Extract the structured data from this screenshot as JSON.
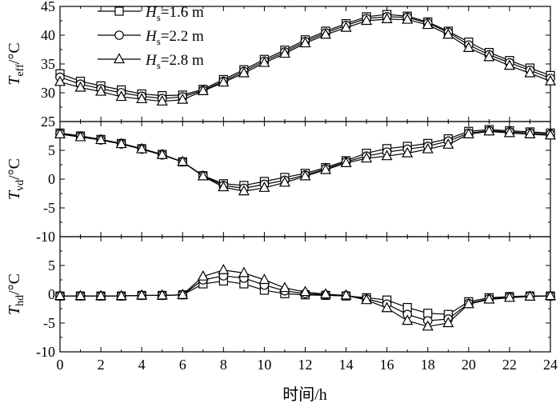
{
  "chart_data": [
    {
      "type": "line",
      "panel": "top",
      "ylabel_main": "T",
      "ylabel_sub": "eff",
      "ylabel_unit": "/°C",
      "ylim": [
        25,
        45
      ],
      "yticks": [
        25,
        30,
        35,
        40,
        45
      ],
      "xlim": [
        0,
        24
      ],
      "grid": false,
      "legend_position": "top-left",
      "x": [
        0,
        1,
        2,
        3,
        4,
        5,
        6,
        7,
        8,
        9,
        10,
        11,
        12,
        13,
        14,
        15,
        16,
        17,
        18,
        19,
        20,
        21,
        22,
        23,
        24
      ],
      "series": [
        {
          "name_main": "H",
          "name_sub": "s",
          "name_rest": "=1.6 m",
          "marker": "square",
          "values": [
            33.3,
            32.0,
            31.2,
            30.5,
            29.8,
            29.5,
            29.6,
            30.6,
            32.3,
            34.0,
            35.8,
            37.4,
            39.2,
            40.7,
            42.0,
            43.2,
            43.6,
            43.3,
            42.3,
            40.7,
            38.8,
            37.0,
            35.6,
            34.3,
            33.0
          ]
        },
        {
          "name_main": "H",
          "name_sub": "s",
          "name_rest": "=2.2 m",
          "marker": "circle",
          "values": [
            32.7,
            31.5,
            30.7,
            30.0,
            29.4,
            29.0,
            29.3,
            30.4,
            32.0,
            33.7,
            35.5,
            37.1,
            38.9,
            40.4,
            41.7,
            42.9,
            43.2,
            43.1,
            42.1,
            40.5,
            38.3,
            36.6,
            35.2,
            33.9,
            32.5
          ]
        },
        {
          "name_main": "H",
          "name_sub": "s",
          "name_rest": "=2.8 m",
          "marker": "triangle",
          "values": [
            31.9,
            30.9,
            30.2,
            29.3,
            28.9,
            28.5,
            28.8,
            30.3,
            31.8,
            33.4,
            35.2,
            36.8,
            38.6,
            40.1,
            41.3,
            42.5,
            42.8,
            42.7,
            41.8,
            40.1,
            37.8,
            36.2,
            34.7,
            33.4,
            32.0
          ]
        }
      ]
    },
    {
      "type": "line",
      "panel": "middle",
      "ylabel_main": "T",
      "ylabel_sub": "vd",
      "ylabel_unit": "/°C",
      "ylim": [
        -10,
        10
      ],
      "yticks": [
        -10,
        -5,
        0,
        5
      ],
      "xlim": [
        0,
        24
      ],
      "grid": false,
      "x": [
        0,
        1,
        2,
        3,
        4,
        5,
        6,
        7,
        8,
        9,
        10,
        11,
        12,
        13,
        14,
        15,
        16,
        17,
        18,
        19,
        20,
        21,
        22,
        23,
        24
      ],
      "series": [
        {
          "marker": "square",
          "values": [
            8.0,
            7.5,
            6.9,
            6.2,
            5.3,
            4.3,
            3.0,
            0.6,
            -0.8,
            -1.1,
            -0.4,
            0.3,
            1.0,
            2.0,
            3.2,
            4.5,
            5.3,
            5.7,
            6.2,
            7.0,
            8.3,
            8.6,
            8.4,
            8.2,
            8.0
          ]
        },
        {
          "marker": "circle",
          "values": [
            7.9,
            7.4,
            6.8,
            6.1,
            5.2,
            4.2,
            3.0,
            0.6,
            -1.1,
            -1.6,
            -0.9,
            -0.2,
            0.7,
            1.8,
            3.0,
            4.0,
            4.7,
            5.2,
            5.7,
            6.6,
            8.0,
            8.4,
            8.2,
            8.0,
            7.8
          ]
        },
        {
          "marker": "triangle",
          "values": [
            7.8,
            7.3,
            6.8,
            6.1,
            5.2,
            4.2,
            3.0,
            0.5,
            -1.4,
            -2.1,
            -1.5,
            -0.6,
            0.5,
            1.6,
            2.8,
            3.6,
            4.0,
            4.5,
            5.2,
            6.0,
            7.8,
            8.3,
            8.0,
            7.8,
            7.6
          ]
        }
      ]
    },
    {
      "type": "line",
      "panel": "bottom",
      "ylabel_main": "T",
      "ylabel_sub": "hd",
      "ylabel_unit": "/°C",
      "ylim": [
        -10,
        10
      ],
      "yticks": [
        -10,
        -5,
        0,
        5
      ],
      "xlim": [
        0,
        24
      ],
      "xticks": [
        0,
        2,
        4,
        6,
        8,
        10,
        12,
        14,
        16,
        18,
        20,
        22,
        24
      ],
      "xlabel": "时间/h",
      "grid": false,
      "x": [
        0,
        1,
        2,
        3,
        4,
        5,
        6,
        7,
        8,
        9,
        10,
        11,
        12,
        13,
        14,
        15,
        16,
        17,
        18,
        19,
        20,
        21,
        22,
        23,
        24
      ],
      "series": [
        {
          "marker": "square",
          "values": [
            -0.3,
            -0.3,
            -0.3,
            -0.3,
            -0.2,
            -0.2,
            -0.1,
            1.8,
            2.3,
            1.8,
            0.7,
            0.1,
            -0.1,
            -0.2,
            -0.3,
            -0.6,
            -1.0,
            -2.3,
            -3.3,
            -3.5,
            -1.3,
            -0.6,
            -0.4,
            -0.3,
            -0.3
          ]
        },
        {
          "marker": "circle",
          "values": [
            -0.3,
            -0.3,
            -0.3,
            -0.3,
            -0.2,
            -0.2,
            -0.1,
            2.5,
            3.2,
            2.8,
            1.6,
            0.6,
            0.1,
            -0.1,
            -0.2,
            -0.8,
            -1.7,
            -3.5,
            -4.6,
            -4.3,
            -1.6,
            -0.8,
            -0.5,
            -0.3,
            -0.3
          ]
        },
        {
          "marker": "triangle",
          "values": [
            -0.3,
            -0.3,
            -0.3,
            -0.3,
            -0.2,
            -0.2,
            -0.1,
            3.1,
            4.2,
            3.7,
            2.5,
            1.1,
            0.4,
            0.0,
            -0.2,
            -1.0,
            -2.4,
            -4.6,
            -5.6,
            -5.0,
            -1.7,
            -0.9,
            -0.6,
            -0.4,
            -0.3
          ]
        }
      ]
    }
  ]
}
